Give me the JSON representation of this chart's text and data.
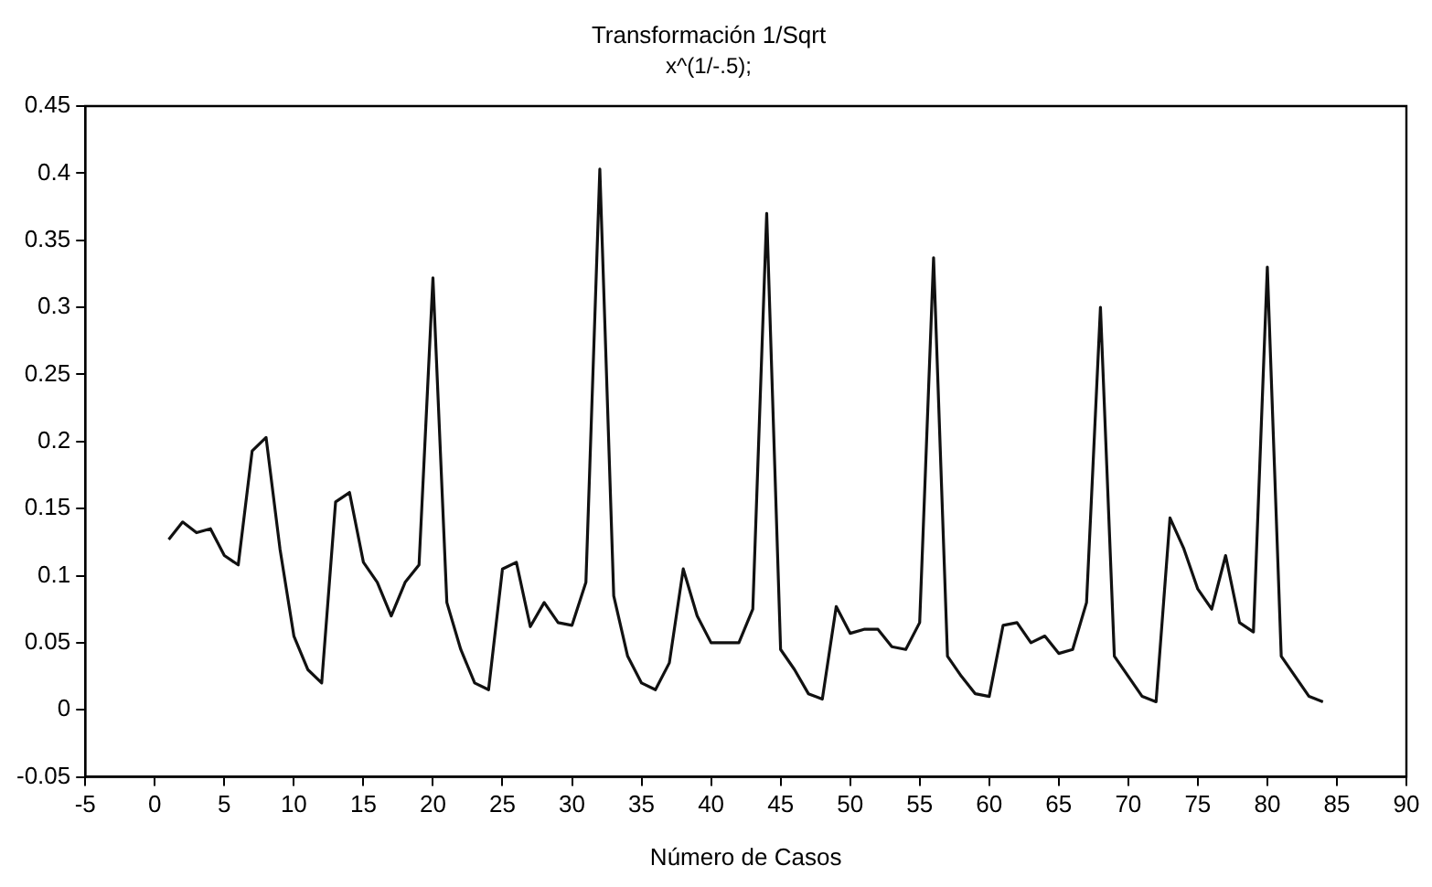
{
  "chart_data": {
    "type": "line",
    "title": "Transformación 1/Sqrt",
    "subtitle": "x^(1/-.5);",
    "xlabel": "Número de Casos",
    "x": [
      1,
      2,
      3,
      4,
      5,
      6,
      7,
      8,
      9,
      10,
      11,
      12,
      13,
      14,
      15,
      16,
      17,
      18,
      19,
      20,
      21,
      22,
      23,
      24,
      25,
      26,
      27,
      28,
      29,
      30,
      31,
      32,
      33,
      34,
      35,
      36,
      37,
      38,
      39,
      40,
      41,
      42,
      43,
      44,
      45,
      46,
      47,
      48,
      49,
      50,
      51,
      52,
      53,
      54,
      55,
      56,
      57,
      58,
      59,
      60,
      61,
      62,
      63,
      64,
      65,
      66,
      67,
      68,
      69,
      70,
      71,
      72,
      73,
      74,
      75,
      76,
      77,
      78,
      79,
      80,
      81,
      82,
      83,
      84
    ],
    "series": [
      {
        "color": "#111111",
        "values": [
          0.127,
          0.14,
          0.132,
          0.135,
          0.115,
          0.108,
          0.193,
          0.203,
          0.12,
          0.055,
          0.03,
          0.02,
          0.155,
          0.162,
          0.11,
          0.095,
          0.07,
          0.095,
          0.108,
          0.322,
          0.08,
          0.045,
          0.02,
          0.015,
          0.105,
          0.11,
          0.062,
          0.08,
          0.065,
          0.063,
          0.095,
          0.403,
          0.085,
          0.04,
          0.02,
          0.015,
          0.035,
          0.105,
          0.07,
          0.05,
          0.05,
          0.05,
          0.075,
          0.37,
          0.045,
          0.03,
          0.012,
          0.008,
          0.077,
          0.057,
          0.06,
          0.06,
          0.047,
          0.045,
          0.065,
          0.337,
          0.04,
          0.025,
          0.012,
          0.01,
          0.063,
          0.065,
          0.05,
          0.055,
          0.042,
          0.045,
          0.08,
          0.3,
          0.04,
          0.025,
          0.01,
          0.006,
          0.143,
          0.12,
          0.09,
          0.075,
          0.115,
          0.065,
          0.058,
          0.33,
          0.04,
          0.025,
          0.01,
          0.006
        ]
      }
    ],
    "xlim": [
      -5,
      90
    ],
    "xticks": [
      -5,
      0,
      5,
      10,
      15,
      20,
      25,
      30,
      35,
      40,
      45,
      50,
      55,
      60,
      65,
      70,
      75,
      80,
      85,
      90
    ],
    "ylim": [
      -0.05,
      0.45
    ],
    "yticks": [
      -0.05,
      0,
      0.05,
      0.1,
      0.15,
      0.2,
      0.25,
      0.3,
      0.35,
      0.4,
      0.45
    ],
    "grid": false,
    "legend": false,
    "marker": "none",
    "line_style": "solid"
  }
}
